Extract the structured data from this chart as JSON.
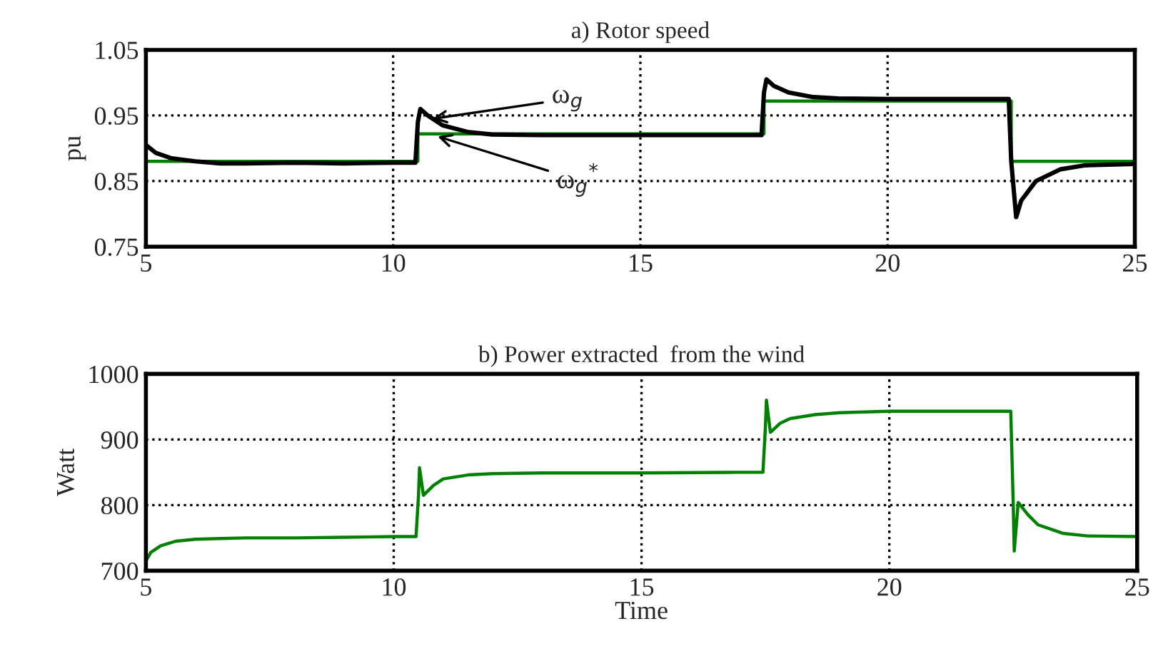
{
  "chart_data": [
    {
      "type": "line",
      "title": "a) Rotor speed",
      "ylabel": "pu",
      "xlim": [
        5,
        25
      ],
      "xticks": [
        5,
        10,
        15,
        20,
        25
      ],
      "ylim": [
        0.75,
        1.05
      ],
      "yticks": [
        0.75,
        0.85,
        0.95,
        1.05
      ],
      "grid": true,
      "series": [
        {
          "color": "#008000",
          "x": [
            5,
            10.5,
            10.5,
            17.5,
            17.5,
            22.5,
            22.5,
            25
          ],
          "values": [
            0.88,
            0.88,
            0.922,
            0.922,
            0.972,
            0.972,
            0.88,
            0.88
          ]
        },
        {
          "color": "#000000",
          "x": [
            5,
            5.2,
            5.5,
            6,
            6.5,
            7,
            8,
            9,
            10,
            10.45,
            10.5,
            10.55,
            10.7,
            11,
            11.5,
            12,
            13,
            15,
            17,
            17.45,
            17.5,
            17.55,
            17.7,
            18,
            18.5,
            19,
            20,
            21,
            22,
            22.45,
            22.5,
            22.6,
            22.7,
            23,
            23.5,
            24,
            25
          ],
          "values": [
            0.905,
            0.893,
            0.885,
            0.88,
            0.877,
            0.877,
            0.878,
            0.877,
            0.878,
            0.878,
            0.94,
            0.96,
            0.95,
            0.935,
            0.925,
            0.921,
            0.92,
            0.92,
            0.92,
            0.92,
            0.985,
            1.005,
            0.995,
            0.985,
            0.978,
            0.976,
            0.975,
            0.975,
            0.975,
            0.975,
            0.88,
            0.795,
            0.82,
            0.85,
            0.868,
            0.874,
            0.876
          ]
        }
      ],
      "annotations": [
        {
          "text": "ω$_{g}$",
          "x": 10.8,
          "y": 0.945
        },
        {
          "text": "ω$_{g}$$^{*}$",
          "x": 10.9,
          "y": 0.918
        }
      ]
    },
    {
      "type": "line",
      "title": "b) Power extracted  from the wind",
      "xlabel": "Time",
      "ylabel": "Watt",
      "xlim": [
        5,
        25
      ],
      "xticks": [
        5,
        10,
        15,
        20,
        25
      ],
      "ylim": [
        700,
        1000
      ],
      "yticks": [
        700,
        800,
        900,
        1000
      ],
      "grid": true,
      "series": [
        {
          "color": "#008000",
          "x": [
            5,
            5.1,
            5.3,
            5.6,
            6,
            6.5,
            7,
            8,
            9,
            10,
            10.45,
            10.5,
            10.52,
            10.6,
            10.8,
            11,
            11.5,
            12,
            13,
            15,
            17,
            17.45,
            17.5,
            17.52,
            17.6,
            17.8,
            18,
            18.5,
            19,
            20,
            21,
            22,
            22.45,
            22.5,
            22.52,
            22.6,
            22.8,
            23,
            23.5,
            24,
            25
          ],
          "values": [
            715,
            728,
            738,
            745,
            748,
            749,
            750,
            750,
            751,
            752,
            752,
            815,
            857,
            815,
            830,
            840,
            846,
            848,
            849,
            849,
            850,
            850,
            920,
            960,
            911,
            925,
            932,
            938,
            941,
            943,
            943,
            943,
            943,
            800,
            730,
            804,
            785,
            770,
            757,
            753,
            752
          ]
        }
      ]
    }
  ]
}
